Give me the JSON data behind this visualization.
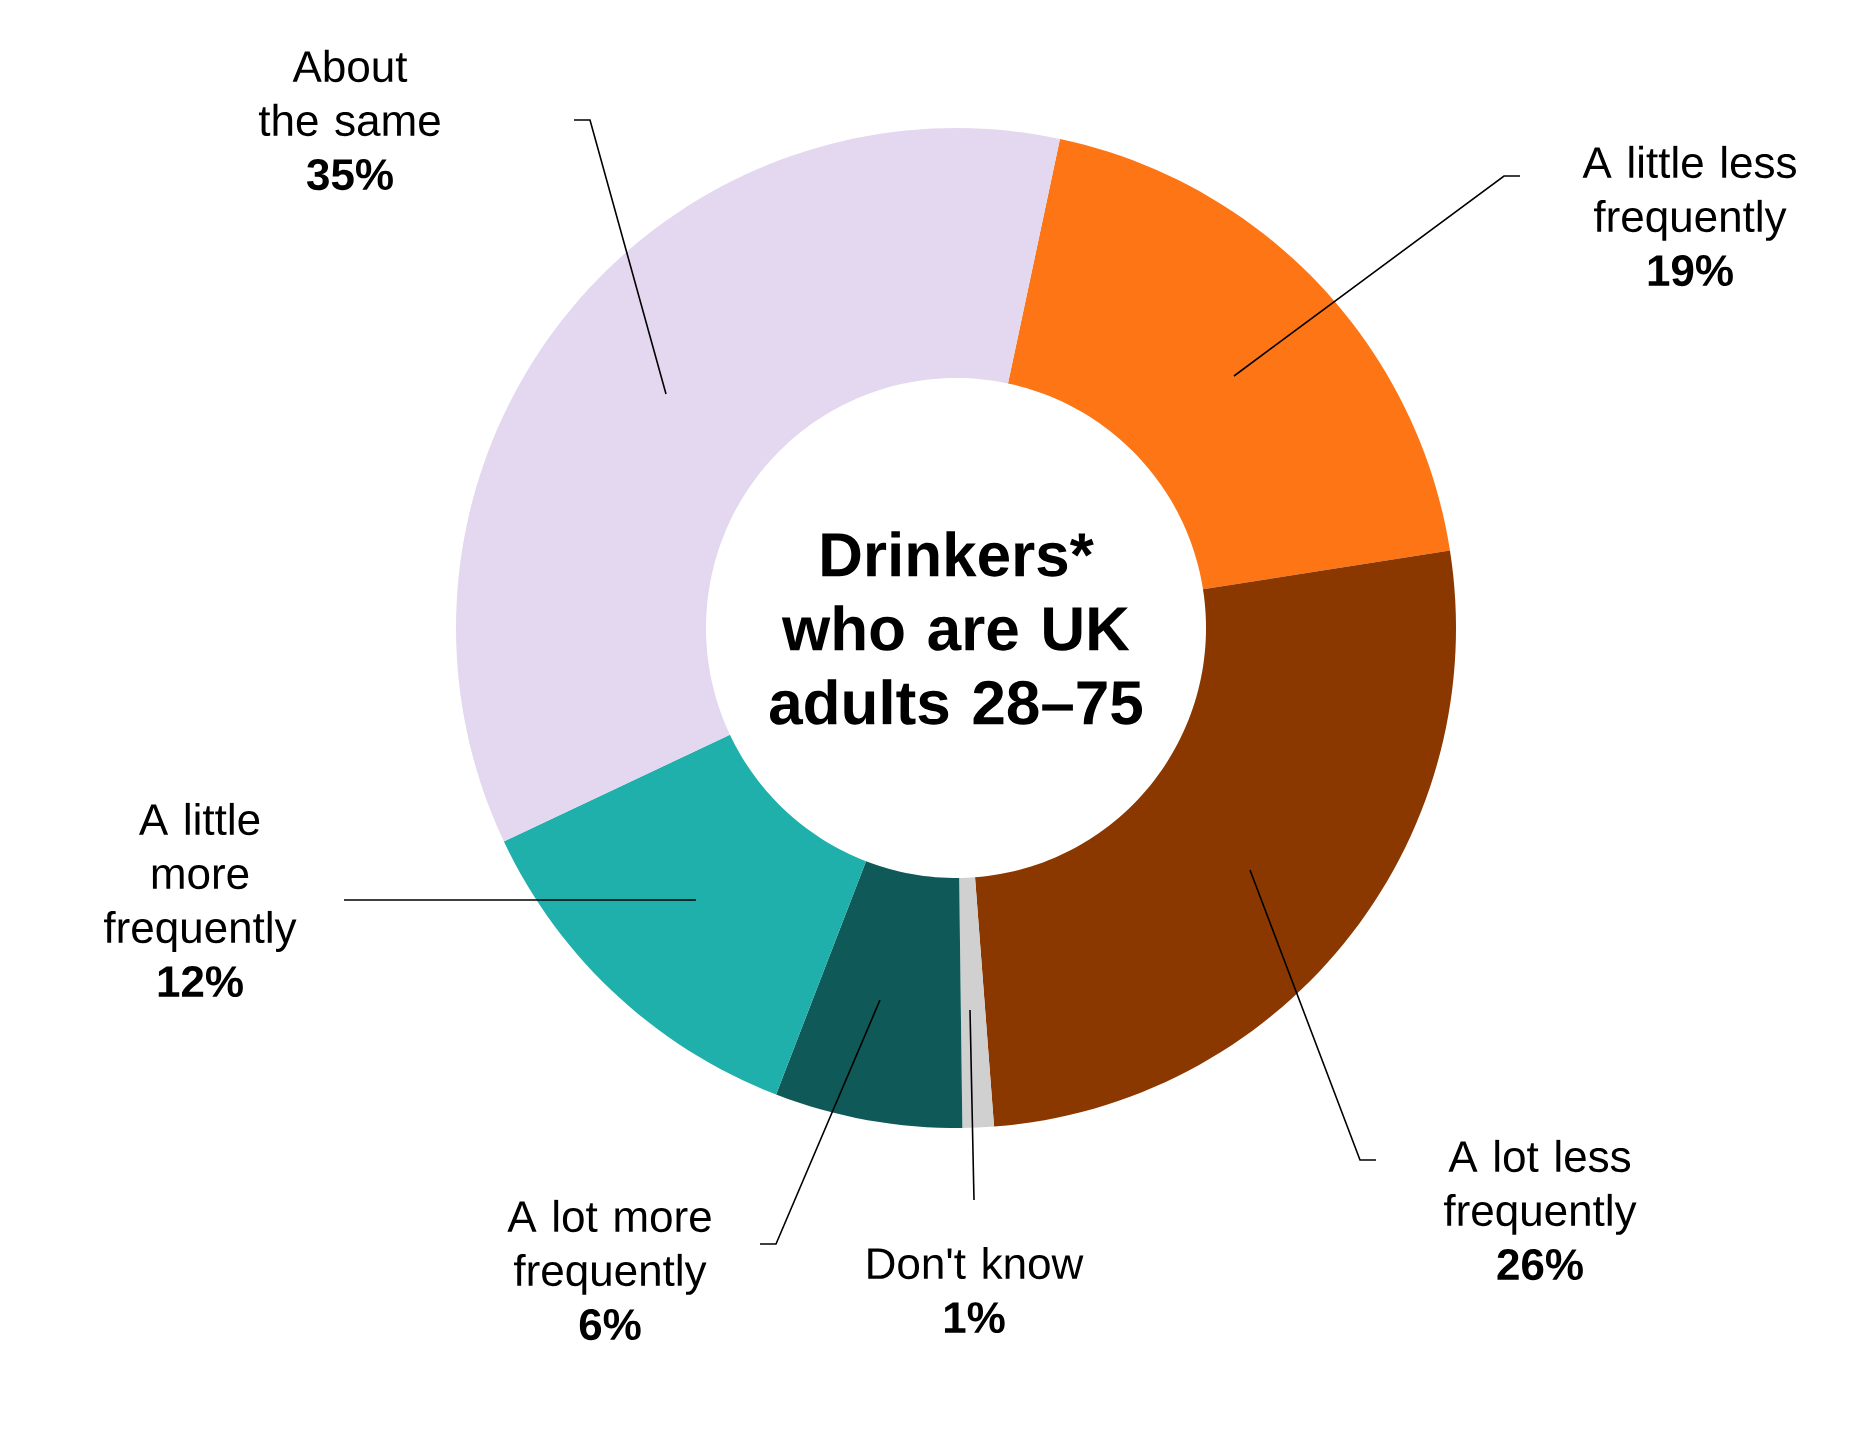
{
  "chart_data": {
    "type": "donut",
    "title": "Drinkers* who are UK adults 28–75",
    "categories": [
      "A little less frequently",
      "A lot less frequently",
      "Don't know",
      "A lot more frequently",
      "A little more frequently",
      "About the same"
    ],
    "values": [
      19,
      26,
      1,
      6,
      12,
      35
    ],
    "value_labels": [
      "19%",
      "26%",
      "1%",
      "6%",
      "12%",
      "35%"
    ],
    "colors": [
      "#fd7514",
      "#8a3800",
      "#d0d0d0",
      "#0f5a58",
      "#20b0ab",
      "#e3d8ef"
    ]
  }
}
